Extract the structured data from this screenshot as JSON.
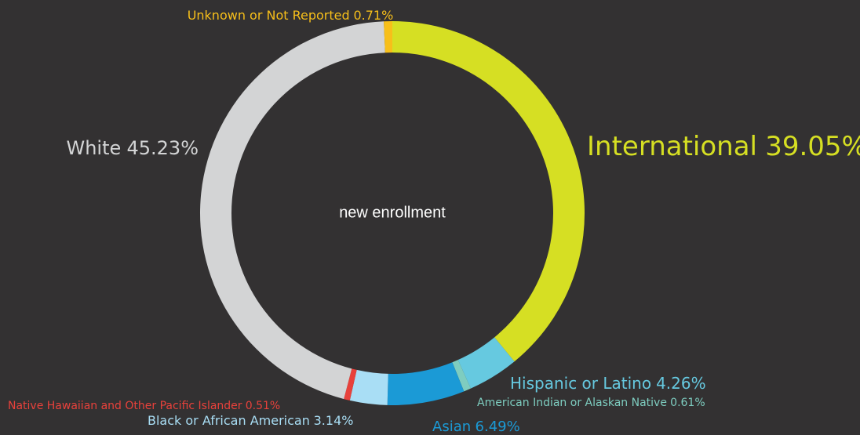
{
  "chart_data": {
    "type": "pie",
    "donut": true,
    "center_label": "new enrollment",
    "categories": [
      "International",
      "Hispanic or Latino",
      "American Indian or Alaskan Native",
      "Asian",
      "Black or African American",
      "Native Hawaiian and Other Pacific Islander",
      "White",
      "Unknown or Not Reported"
    ],
    "values": [
      39.05,
      4.26,
      0.61,
      6.49,
      3.14,
      0.51,
      45.23,
      0.71
    ],
    "value_labels": [
      "39.05%",
      "4.26%",
      "0.61%",
      "6.49%",
      "3.14%",
      "0.51%",
      "45.23%",
      "0.71%"
    ],
    "colors": [
      "#d6df23",
      "#66c9e0",
      "#7ecdc0",
      "#1b9ad6",
      "#a9def5",
      "#e8413b",
      "#d3d4d5",
      "#f7bf1a"
    ]
  }
}
